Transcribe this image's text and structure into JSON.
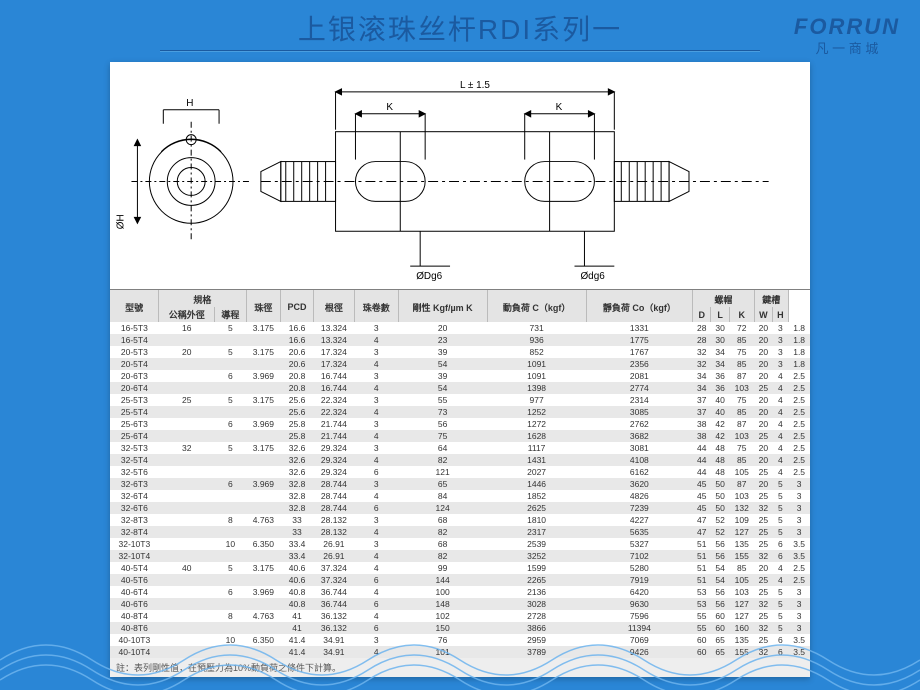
{
  "title": "上银滚珠丝杆RDI系列一",
  "logo": {
    "main": "FORRUN",
    "sub": "凡 一 商 城"
  },
  "diagram": {
    "labels": {
      "L": "L ± 1.5",
      "K": "K",
      "H": "H",
      "QH": "ØH",
      "Dgk": "ØDg6",
      "dgk": "Ødg6"
    }
  },
  "table": {
    "groupHeaders": [
      "型號",
      "規格",
      "珠徑",
      "PCD",
      "根徑",
      "珠卷數",
      "剛性 Kgf/µm K",
      "動負荷 C（kgf）",
      "靜負荷 Co（kgf）",
      "螺帽",
      "鍵槽"
    ],
    "subHeaders": [
      "公稱外徑",
      "導程",
      "",
      "",
      "",
      "",
      "",
      "",
      "",
      "D",
      "L",
      "K",
      "W",
      "H"
    ],
    "rows": [
      [
        "16-5T3",
        "16",
        "5",
        "3.175",
        "16.6",
        "13.324",
        "3",
        "20",
        "731",
        "1331",
        "28",
        "30",
        "72",
        "20",
        "3",
        "1.8"
      ],
      [
        "16-5T4",
        "",
        "",
        "",
        "16.6",
        "13.324",
        "4",
        "23",
        "936",
        "1775",
        "28",
        "30",
        "85",
        "20",
        "3",
        "1.8"
      ],
      [
        "20-5T3",
        "20",
        "5",
        "3.175",
        "20.6",
        "17.324",
        "3",
        "39",
        "852",
        "1767",
        "32",
        "34",
        "75",
        "20",
        "3",
        "1.8"
      ],
      [
        "20-5T4",
        "",
        "",
        "",
        "20.6",
        "17.324",
        "4",
        "54",
        "1091",
        "2356",
        "32",
        "34",
        "85",
        "20",
        "3",
        "1.8"
      ],
      [
        "20-6T3",
        "",
        "6",
        "3.969",
        "20.8",
        "16.744",
        "3",
        "39",
        "1091",
        "2081",
        "34",
        "36",
        "87",
        "20",
        "4",
        "2.5"
      ],
      [
        "20-6T4",
        "",
        "",
        "",
        "20.8",
        "16.744",
        "4",
        "54",
        "1398",
        "2774",
        "34",
        "36",
        "103",
        "25",
        "4",
        "2.5"
      ],
      [
        "25-5T3",
        "25",
        "5",
        "3.175",
        "25.6",
        "22.324",
        "3",
        "55",
        "977",
        "2314",
        "37",
        "40",
        "75",
        "20",
        "4",
        "2.5"
      ],
      [
        "25-5T4",
        "",
        "",
        "",
        "25.6",
        "22.324",
        "4",
        "73",
        "1252",
        "3085",
        "37",
        "40",
        "85",
        "20",
        "4",
        "2.5"
      ],
      [
        "25-6T3",
        "",
        "6",
        "3.969",
        "25.8",
        "21.744",
        "3",
        "56",
        "1272",
        "2762",
        "38",
        "42",
        "87",
        "20",
        "4",
        "2.5"
      ],
      [
        "25-6T4",
        "",
        "",
        "",
        "25.8",
        "21.744",
        "4",
        "75",
        "1628",
        "3682",
        "38",
        "42",
        "103",
        "25",
        "4",
        "2.5"
      ],
      [
        "32-5T3",
        "32",
        "5",
        "3.175",
        "32.6",
        "29.324",
        "3",
        "64",
        "1117",
        "3081",
        "44",
        "48",
        "75",
        "20",
        "4",
        "2.5"
      ],
      [
        "32-5T4",
        "",
        "",
        "",
        "32.6",
        "29.324",
        "4",
        "82",
        "1431",
        "4108",
        "44",
        "48",
        "85",
        "20",
        "4",
        "2.5"
      ],
      [
        "32-5T6",
        "",
        "",
        "",
        "32.6",
        "29.324",
        "6",
        "121",
        "2027",
        "6162",
        "44",
        "48",
        "105",
        "25",
        "4",
        "2.5"
      ],
      [
        "32-6T3",
        "",
        "6",
        "3.969",
        "32.8",
        "28.744",
        "3",
        "65",
        "1446",
        "3620",
        "45",
        "50",
        "87",
        "20",
        "5",
        "3"
      ],
      [
        "32-6T4",
        "",
        "",
        "",
        "32.8",
        "28.744",
        "4",
        "84",
        "1852",
        "4826",
        "45",
        "50",
        "103",
        "25",
        "5",
        "3"
      ],
      [
        "32-6T6",
        "",
        "",
        "",
        "32.8",
        "28.744",
        "6",
        "124",
        "2625",
        "7239",
        "45",
        "50",
        "132",
        "32",
        "5",
        "3"
      ],
      [
        "32-8T3",
        "",
        "8",
        "4.763",
        "33",
        "28.132",
        "3",
        "68",
        "1810",
        "4227",
        "47",
        "52",
        "109",
        "25",
        "5",
        "3"
      ],
      [
        "32-8T4",
        "",
        "",
        "",
        "33",
        "28.132",
        "4",
        "82",
        "2317",
        "5635",
        "47",
        "52",
        "127",
        "25",
        "5",
        "3"
      ],
      [
        "32-10T3",
        "",
        "10",
        "6.350",
        "33.4",
        "26.91",
        "3",
        "68",
        "2539",
        "5327",
        "51",
        "56",
        "135",
        "25",
        "6",
        "3.5"
      ],
      [
        "32-10T4",
        "",
        "",
        "",
        "33.4",
        "26.91",
        "4",
        "82",
        "3252",
        "7102",
        "51",
        "56",
        "155",
        "32",
        "6",
        "3.5"
      ],
      [
        "40-5T4",
        "40",
        "5",
        "3.175",
        "40.6",
        "37.324",
        "4",
        "99",
        "1599",
        "5280",
        "51",
        "54",
        "85",
        "20",
        "4",
        "2.5"
      ],
      [
        "40-5T6",
        "",
        "",
        "",
        "40.6",
        "37.324",
        "6",
        "144",
        "2265",
        "7919",
        "51",
        "54",
        "105",
        "25",
        "4",
        "2.5"
      ],
      [
        "40-6T4",
        "",
        "6",
        "3.969",
        "40.8",
        "36.744",
        "4",
        "100",
        "2136",
        "6420",
        "53",
        "56",
        "103",
        "25",
        "5",
        "3"
      ],
      [
        "40-6T6",
        "",
        "",
        "",
        "40.8",
        "36.744",
        "6",
        "148",
        "3028",
        "9630",
        "53",
        "56",
        "127",
        "32",
        "5",
        "3"
      ],
      [
        "40-8T4",
        "",
        "8",
        "4.763",
        "41",
        "36.132",
        "4",
        "102",
        "2728",
        "7596",
        "55",
        "60",
        "127",
        "25",
        "5",
        "3"
      ],
      [
        "40-8T6",
        "",
        "",
        "",
        "41",
        "36.132",
        "6",
        "150",
        "3866",
        "11394",
        "55",
        "60",
        "160",
        "32",
        "5",
        "3"
      ],
      [
        "40-10T3",
        "",
        "10",
        "6.350",
        "41.4",
        "34.91",
        "3",
        "76",
        "2959",
        "7069",
        "60",
        "65",
        "135",
        "25",
        "6",
        "3.5"
      ],
      [
        "40-10T4",
        "",
        "",
        "",
        "41.4",
        "34.91",
        "4",
        "101",
        "3789",
        "9426",
        "60",
        "65",
        "155",
        "32",
        "6",
        "3.5"
      ]
    ],
    "footnote": "註：表列剛性值，在預壓力為10%動負荷之條件下計算。"
  },
  "colors": {
    "pageBg": "#2a86d6",
    "titleColor": "#1b5aa0",
    "cardBg": "#ffffff",
    "headerBg": "#e4e4e4",
    "rowEven": "#e8e8e8",
    "rowOdd": "#ffffff",
    "stroke": "#000000"
  }
}
